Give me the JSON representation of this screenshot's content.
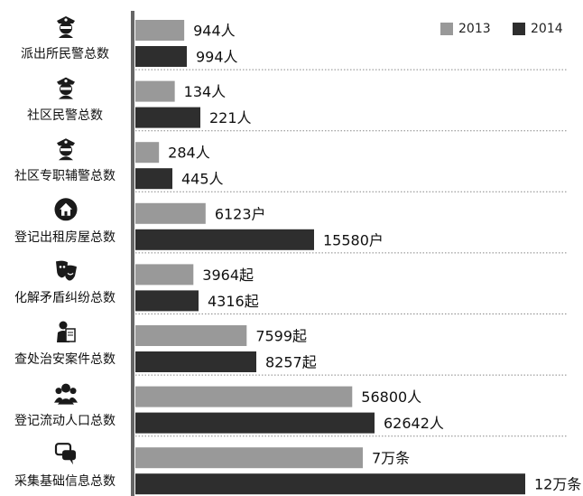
{
  "colors": {
    "y2013": "#999999",
    "y2014": "#2e2e2e",
    "divider": "#888888",
    "axis": "#666666"
  },
  "chart_data": {
    "type": "bar",
    "orientation": "horizontal",
    "grid": false,
    "legend_position": "top-right",
    "categories": [
      {
        "label": "派出所民警总数",
        "icon": "police-officer-icon"
      },
      {
        "label": "社区民警总数",
        "icon": "police-officer-icon"
      },
      {
        "label": "社区专职辅警总数",
        "icon": "police-officer-icon"
      },
      {
        "label": "登记出租房屋总数",
        "icon": "house-icon"
      },
      {
        "label": "化解矛盾纠纷总数",
        "icon": "theater-masks-icon"
      },
      {
        "label": "查处治安案件总数",
        "icon": "officer-writing-icon"
      },
      {
        "label": "登记流动人口总数",
        "icon": "people-group-icon"
      },
      {
        "label": "采集基础信息总数",
        "icon": "chat-bubbles-icon"
      }
    ],
    "series": [
      {
        "name": "2013",
        "values": [
          944,
          134,
          284,
          6123,
          3964,
          7599,
          56800,
          70000
        ],
        "labels": [
          "944人",
          "134人",
          "284人",
          "6123户",
          "3964起",
          "7599起",
          "56800人",
          "7万条"
        ]
      },
      {
        "name": "2014",
        "values": [
          994,
          221,
          445,
          15580,
          4316,
          8257,
          62642,
          120000
        ],
        "labels": [
          "994人",
          "221人",
          "445人",
          "15580户",
          "4316起",
          "8257起",
          "62642人",
          "12万条"
        ]
      }
    ]
  }
}
